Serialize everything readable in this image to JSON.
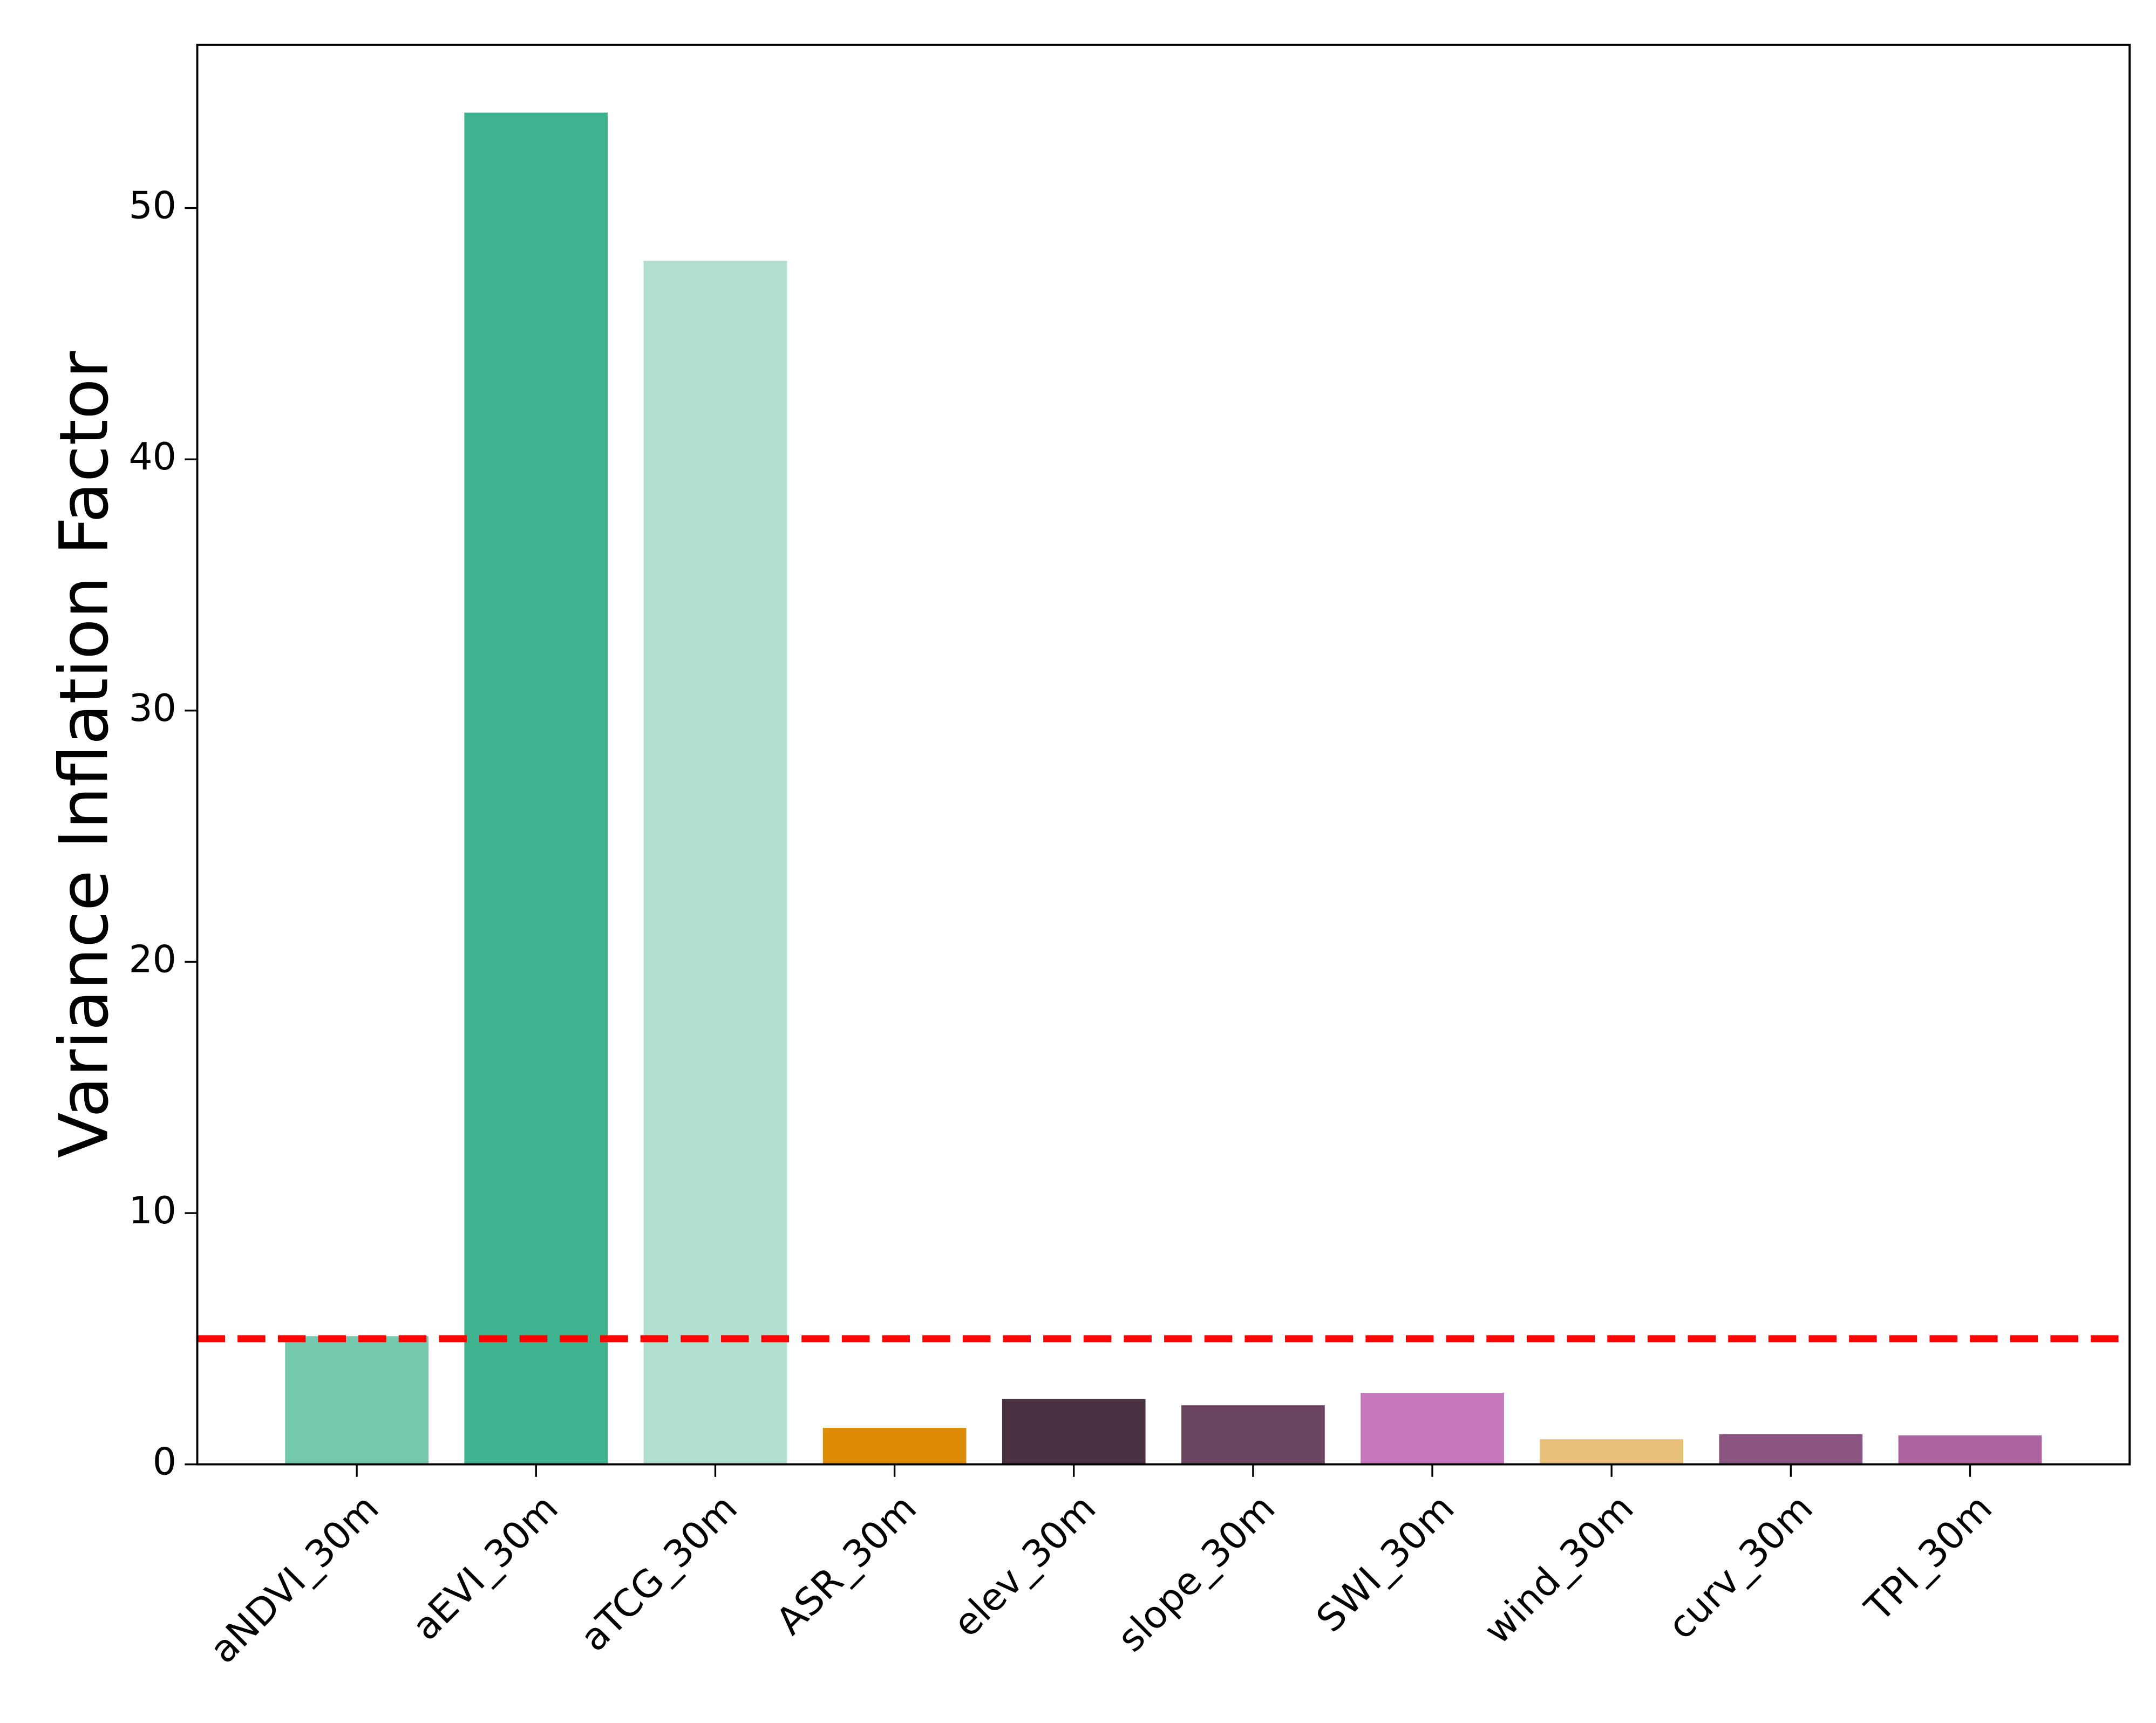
{
  "chart_data": {
    "type": "bar",
    "ylabel": "Variance Inflation Factor",
    "categories": [
      "aNDVI_30m",
      "aEVI_30m",
      "aTCG_30m",
      "ASR_30m",
      "elev_30m",
      "slope_30m",
      "SWI_30m",
      "wind_30m",
      "curv_30m",
      "TPI_30m"
    ],
    "values": [
      5.1,
      53.8,
      47.9,
      1.45,
      2.6,
      2.35,
      2.85,
      1.0,
      1.2,
      1.15
    ],
    "colors": [
      "#74c8ae",
      "#3eb38f",
      "#b0dfd0",
      "#de8b05",
      "#4a3242",
      "#6b4461",
      "#c677bd",
      "#e9c07a",
      "#8b5581",
      "#ac65a1"
    ],
    "threshold": 5,
    "threshold_color": "#ff0000",
    "ylim": [
      0,
      56.5
    ],
    "yticks": [
      0,
      10,
      20,
      30,
      40,
      50
    ],
    "grid": false
  }
}
